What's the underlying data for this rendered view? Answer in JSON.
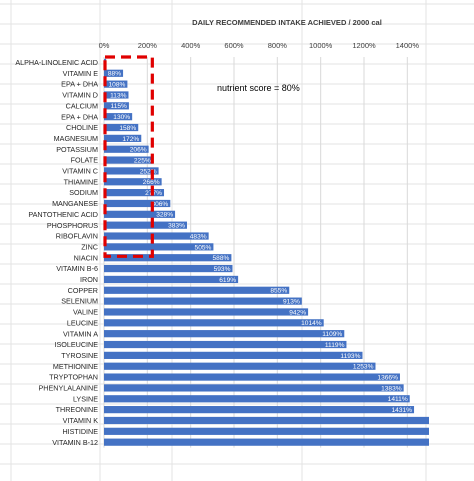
{
  "chart_data": {
    "type": "bar",
    "orientation": "horizontal",
    "title": "DAILY RECOMMENDED INTAKE ACHIEVED / 2000 cal",
    "xlabel": "",
    "ylabel": "",
    "xlim": [
      0,
      1500
    ],
    "xticks": [
      0,
      200,
      400,
      600,
      800,
      1000,
      1200,
      1400
    ],
    "tick_labels": [
      "0%",
      "200%",
      "400%",
      "600%",
      "800%",
      "1000%",
      "1200%",
      "1400%"
    ],
    "grid": true,
    "bar_color": "#4472c4",
    "highlight_color": "#e00000",
    "highlight_range": [
      0,
      200
    ],
    "annotation": "nutrient score = 80%",
    "categories": [
      "ALPHA-LINOLENIC ACID",
      "VITAMIN E",
      "EPA + DHA",
      "VITAMIN D",
      "CALCIUM",
      "EPA + DHA",
      "CHOLINE",
      "MAGNESIUM",
      "POTASSIUM",
      "FOLATE",
      "VITAMIN C",
      "THIAMINE",
      "SODIUM",
      "MANGANESE",
      "PANTOTHENIC ACID",
      "PHOSPHORUS",
      "RIBOFLAVIN",
      "ZINC",
      "NIACIN",
      "VITAMIN B-6",
      "IRON",
      "COPPER",
      "SELENIUM",
      "VALINE",
      "LEUCINE",
      "VITAMIN A",
      "ISOLEUCINE",
      "TYROSINE",
      "METHIONINE",
      "TRYPTOPHAN",
      "PHENYLALANINE",
      "LYSINE",
      "THREONINE",
      "VITAMIN K",
      "HISTIDINE",
      "VITAMIN B-12"
    ],
    "values": [
      10,
      88,
      108,
      113,
      115,
      130,
      158,
      172,
      206,
      225,
      252,
      266,
      277,
      306,
      328,
      383,
      483,
      505,
      588,
      593,
      619,
      855,
      913,
      942,
      1014,
      1109,
      1119,
      1193,
      1253,
      1366,
      1383,
      1411,
      1431,
      1500,
      1500,
      1500
    ],
    "data_labels": [
      "",
      "88%",
      "108%",
      "113%",
      "115%",
      "130%",
      "158%",
      "172%",
      "206%",
      "225%",
      "252%",
      "266%",
      "277%",
      "306%",
      "328%",
      "383%",
      "483%",
      "505%",
      "588%",
      "593%",
      "619%",
      "855%",
      "913%",
      "942%",
      "1014%",
      "1109%",
      "1119%",
      "1193%",
      "1253%",
      "1366%",
      "1383%",
      "1411%",
      "1431%",
      "",
      "",
      ""
    ]
  }
}
